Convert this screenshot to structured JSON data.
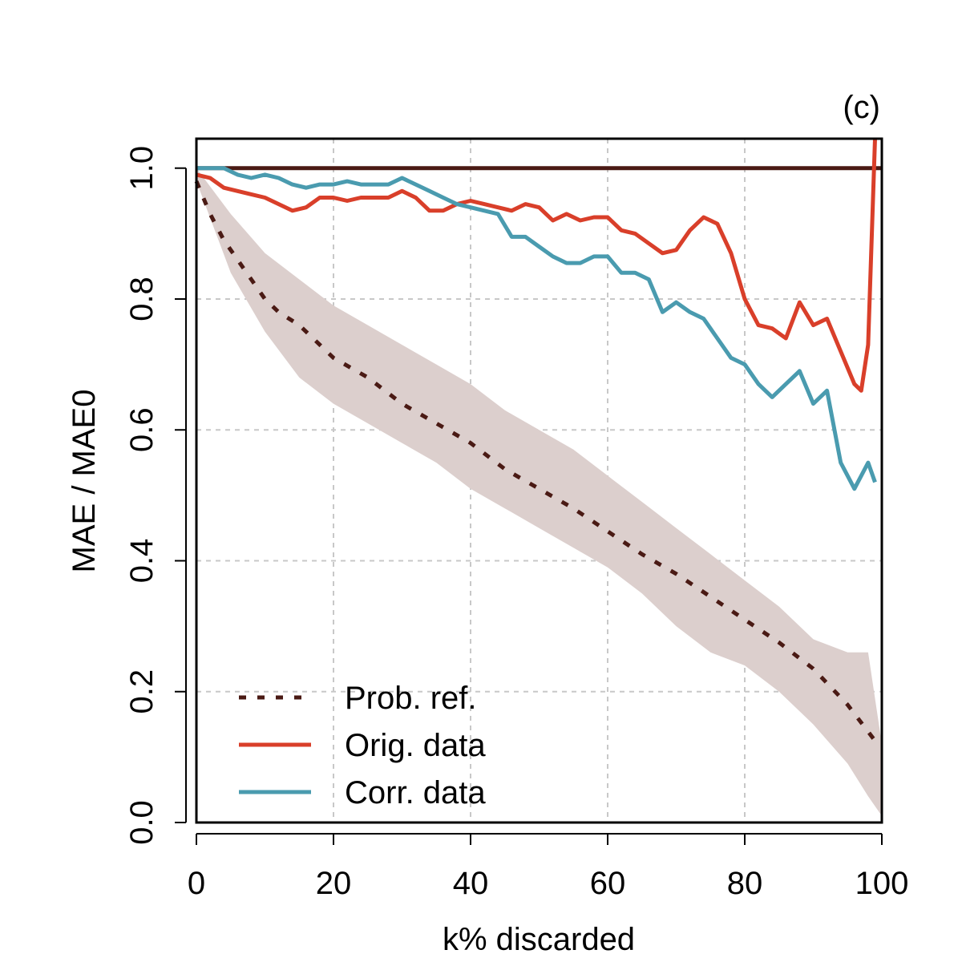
{
  "chart_data": {
    "type": "line",
    "panel_label": "(c)",
    "xlabel": "k% discarded",
    "ylabel": "MAE / MAE0",
    "xlim": [
      0,
      100
    ],
    "ylim": [
      0,
      1.045
    ],
    "xticks": [
      0,
      20,
      40,
      60,
      80,
      100
    ],
    "xtick_labels": [
      "0",
      "20",
      "40",
      "60",
      "80",
      "100"
    ],
    "yticks": [
      0,
      0.2,
      0.4,
      0.6,
      0.8,
      1.0
    ],
    "ytick_labels": [
      "0.0",
      "0.2",
      "0.4",
      "0.6",
      "0.8",
      "1.0"
    ],
    "grid": true,
    "legend_position": "bottom-left",
    "colors": {
      "reference": "#4a1a14",
      "band": "#dccfcd",
      "orig": "#d93f2a",
      "corr": "#4a9baf"
    },
    "reference_line": {
      "y": 1.0
    },
    "band": {
      "x": [
        0,
        5,
        10,
        15,
        20,
        25,
        30,
        35,
        40,
        45,
        50,
        55,
        60,
        65,
        70,
        75,
        80,
        85,
        90,
        95,
        98,
        100
      ],
      "upper": [
        1.0,
        0.93,
        0.87,
        0.83,
        0.79,
        0.76,
        0.73,
        0.7,
        0.67,
        0.63,
        0.6,
        0.57,
        0.53,
        0.49,
        0.45,
        0.41,
        0.37,
        0.33,
        0.28,
        0.26,
        0.26,
        0.12
      ],
      "lower": [
        0.98,
        0.84,
        0.75,
        0.68,
        0.64,
        0.61,
        0.58,
        0.55,
        0.51,
        0.48,
        0.45,
        0.42,
        0.39,
        0.35,
        0.3,
        0.26,
        0.24,
        0.2,
        0.15,
        0.09,
        0.04,
        0.01
      ]
    },
    "series": [
      {
        "name": "Prob. ref.",
        "style": "dotted",
        "x": [
          0,
          2,
          4,
          6,
          8,
          10,
          12,
          15,
          20,
          25,
          30,
          35,
          40,
          45,
          50,
          55,
          60,
          65,
          70,
          75,
          80,
          85,
          90,
          95,
          99
        ],
        "y": [
          0.98,
          0.93,
          0.89,
          0.86,
          0.83,
          0.8,
          0.78,
          0.76,
          0.71,
          0.68,
          0.64,
          0.61,
          0.58,
          0.54,
          0.51,
          0.48,
          0.445,
          0.41,
          0.38,
          0.345,
          0.31,
          0.275,
          0.235,
          0.18,
          0.125
        ]
      },
      {
        "name": "Orig. data",
        "style": "solid",
        "x": [
          0,
          2,
          4,
          6,
          8,
          10,
          12,
          14,
          16,
          18,
          20,
          22,
          24,
          26,
          28,
          30,
          32,
          34,
          36,
          38,
          40,
          42,
          44,
          46,
          48,
          50,
          52,
          54,
          56,
          58,
          60,
          62,
          64,
          66,
          68,
          70,
          72,
          74,
          76,
          78,
          80,
          82,
          84,
          86,
          88,
          90,
          92,
          94,
          96,
          97,
          98,
          99
        ],
        "y": [
          0.99,
          0.985,
          0.97,
          0.965,
          0.96,
          0.955,
          0.945,
          0.935,
          0.94,
          0.955,
          0.955,
          0.95,
          0.955,
          0.955,
          0.955,
          0.965,
          0.955,
          0.935,
          0.935,
          0.945,
          0.95,
          0.945,
          0.94,
          0.935,
          0.945,
          0.94,
          0.92,
          0.93,
          0.92,
          0.925,
          0.925,
          0.905,
          0.9,
          0.885,
          0.87,
          0.875,
          0.905,
          0.925,
          0.915,
          0.87,
          0.8,
          0.76,
          0.755,
          0.74,
          0.795,
          0.76,
          0.77,
          0.72,
          0.67,
          0.66,
          0.73,
          1.045
        ]
      },
      {
        "name": "Corr. data",
        "style": "solid",
        "x": [
          0,
          2,
          4,
          6,
          8,
          10,
          12,
          14,
          16,
          18,
          20,
          22,
          24,
          26,
          28,
          30,
          32,
          34,
          36,
          38,
          40,
          42,
          44,
          46,
          48,
          50,
          52,
          54,
          56,
          58,
          60,
          62,
          64,
          66,
          68,
          70,
          72,
          74,
          76,
          78,
          80,
          82,
          84,
          86,
          88,
          90,
          92,
          94,
          96,
          98,
          99
        ],
        "y": [
          1.0,
          1.0,
          1.0,
          0.99,
          0.985,
          0.99,
          0.985,
          0.975,
          0.97,
          0.975,
          0.975,
          0.98,
          0.975,
          0.975,
          0.975,
          0.985,
          0.975,
          0.965,
          0.955,
          0.945,
          0.94,
          0.935,
          0.93,
          0.895,
          0.895,
          0.88,
          0.865,
          0.855,
          0.855,
          0.865,
          0.865,
          0.84,
          0.84,
          0.83,
          0.78,
          0.795,
          0.78,
          0.77,
          0.74,
          0.71,
          0.7,
          0.67,
          0.65,
          0.67,
          0.69,
          0.64,
          0.66,
          0.55,
          0.51,
          0.55,
          0.52
        ]
      }
    ]
  }
}
